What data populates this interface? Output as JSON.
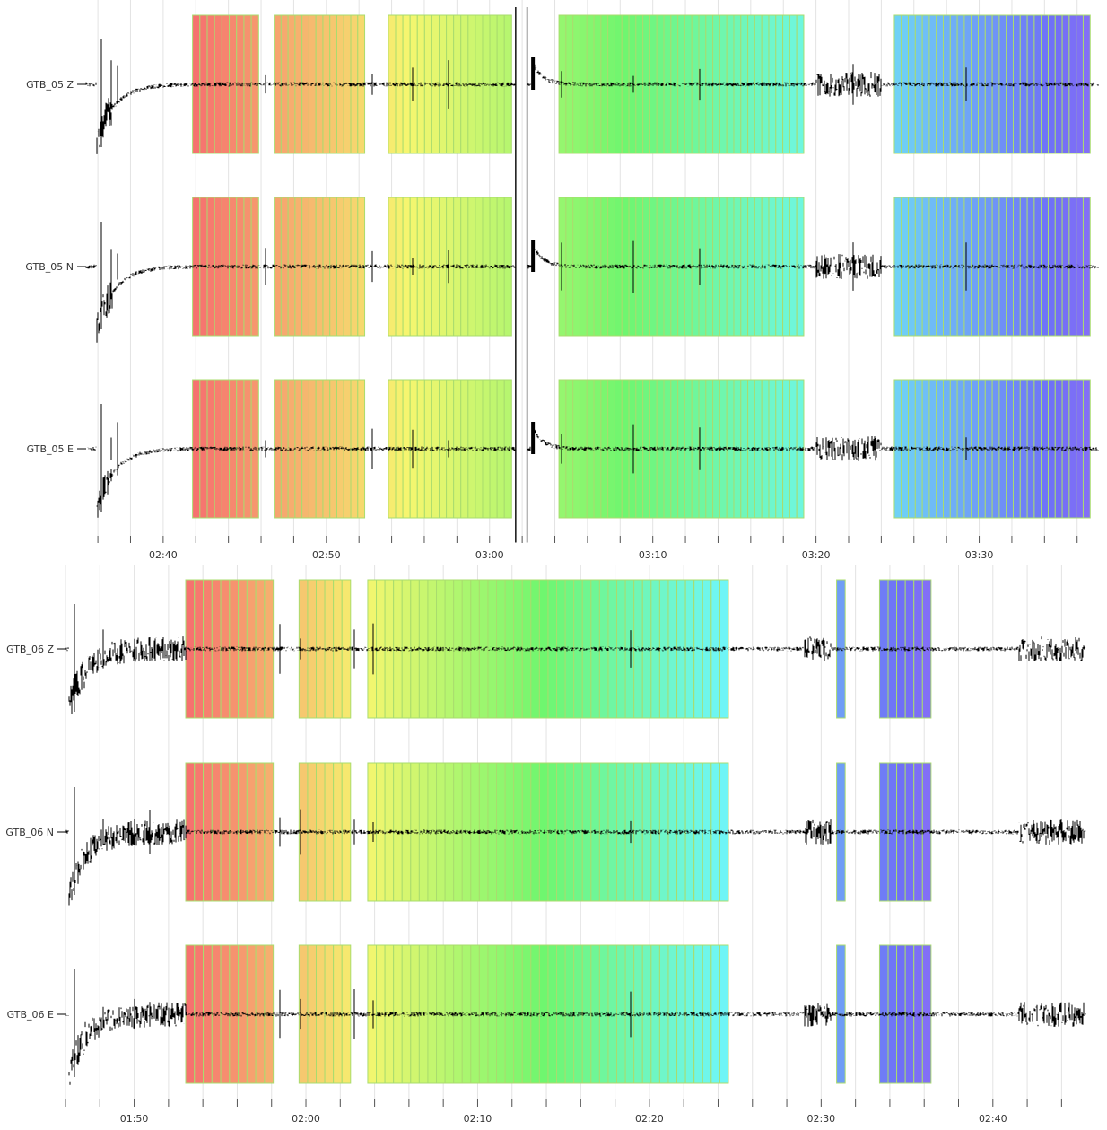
{
  "chart_data": [
    {
      "type": "seismogram",
      "station": "GTB_05",
      "time_axis": {
        "start_min": 155.5,
        "end_min": 217.5,
        "grid_every_min": 2
      },
      "tick_labels": [
        {
          "value": 160,
          "label": "02:40"
        },
        {
          "value": 170,
          "label": "02:50"
        },
        {
          "value": 180,
          "label": "03:00"
        },
        {
          "value": 190,
          "label": "03:10"
        },
        {
          "value": 200,
          "label": "03:20"
        },
        {
          "value": 210,
          "label": "03:30"
        }
      ],
      "channels": [
        {
          "label": "GTB_05 Z",
          "onset_scale": 1.0
        },
        {
          "label": "GTB_05 N",
          "onset_scale": 1.1
        },
        {
          "label": "GTB_05 E",
          "onset_scale": 1.05
        }
      ],
      "window_blocks": [
        {
          "start": 161.8,
          "end": 165.85,
          "n_windows": 9
        },
        {
          "start": 166.8,
          "end": 172.35,
          "n_windows": 13
        },
        {
          "start": 173.8,
          "end": 181.35,
          "n_windows": 17
        },
        {
          "start": 184.25,
          "end": 199.25,
          "n_windows": 35
        },
        {
          "start": 204.8,
          "end": 216.8,
          "n_windows": 28
        }
      ],
      "color_range": {
        "start": 161.8,
        "end": 216.8
      },
      "gap": {
        "start": 181.6,
        "end": 182.3
      },
      "step": {
        "at": 182.7,
        "decay_min": 1.2
      },
      "onset": {
        "at": 155.9,
        "decay_min": 2.2
      },
      "noise_bursts": [
        {
          "start": 200.0,
          "end": 204.0
        }
      ],
      "spikes": [
        156.8,
        157.2,
        166.3,
        172.8,
        175.3,
        177.5,
        184.4,
        188.8,
        192.9,
        202.3,
        209.2
      ]
    },
    {
      "type": "seismogram",
      "station": "GTB_06",
      "time_axis": {
        "start_min": 106.0,
        "end_min": 165.6,
        "grid_every_min": 2
      },
      "tick_labels": [
        {
          "value": 110,
          "label": "01:50"
        },
        {
          "value": 120,
          "label": "02:00"
        },
        {
          "value": 130,
          "label": "02:10"
        },
        {
          "value": 140,
          "label": "02:20"
        },
        {
          "value": 150,
          "label": "02:30"
        },
        {
          "value": 160,
          "label": "02:40"
        }
      ],
      "channels": [
        {
          "label": "GTB_06 Z",
          "onset_scale": 1.0
        },
        {
          "label": "GTB_06 N",
          "onset_scale": 1.1
        },
        {
          "label": "GTB_06 E",
          "onset_scale": 1.05
        }
      ],
      "window_blocks": [
        {
          "start": 113.0,
          "end": 118.1,
          "n_windows": 10
        },
        {
          "start": 119.6,
          "end": 122.6,
          "n_windows": 6
        },
        {
          "start": 123.6,
          "end": 144.6,
          "n_windows": 42
        },
        {
          "start": 150.9,
          "end": 151.4,
          "n_windows": 1
        },
        {
          "start": 153.4,
          "end": 156.4,
          "n_windows": 6
        }
      ],
      "color_range": {
        "start": 113.0,
        "end": 156.4
      },
      "gap": null,
      "step": null,
      "onset": {
        "at": 106.2,
        "decay_min": 2.0
      },
      "noise_bursts": [
        {
          "start": 106.4,
          "end": 113.0
        },
        {
          "start": 149.0,
          "end": 150.6
        },
        {
          "start": 161.5,
          "end": 165.3
        }
      ],
      "spikes": [
        108.2,
        110.0,
        110.9,
        118.5,
        119.7,
        122.8,
        123.9,
        138.9
      ]
    }
  ]
}
